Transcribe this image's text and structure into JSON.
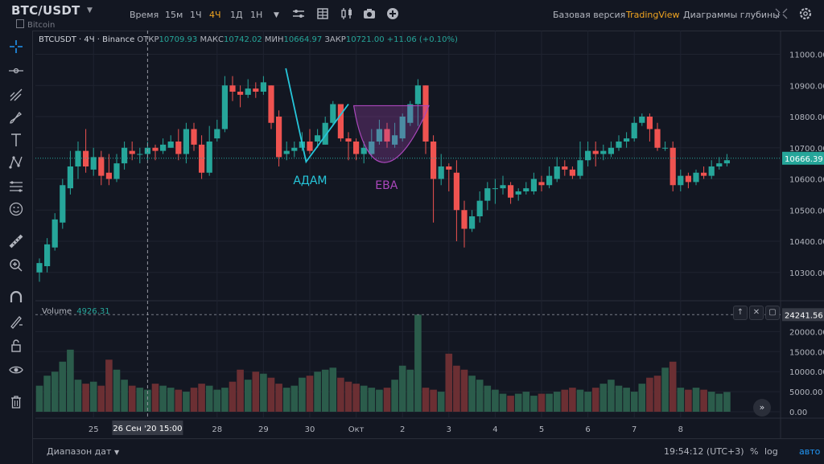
{
  "header": {
    "symbol": "BTC/USDT",
    "subtitle": "Bitcoin",
    "timeframes": [
      "Время",
      "15м",
      "1Ч",
      "4Ч",
      "1Д",
      "1Н"
    ],
    "active_timeframe": "4Ч",
    "links": [
      "Базовая версия",
      "TradingView",
      "Диаграммы глубины"
    ],
    "icons": [
      "chevron-down-icon",
      "indicators-icon",
      "grid-icon",
      "chart-type-icon",
      "camera-icon",
      "add-icon",
      "fullscreen-icon",
      "settings-icon"
    ]
  },
  "legend": {
    "name": "BTCUSDT · 4Ч · Binance",
    "open_label": "ОТКР",
    "open": "10709.93",
    "high_label": "МАКС",
    "high": "10742.02",
    "low_label": "МИН",
    "low": "10664.97",
    "close_label": "ЗАКР",
    "close": "10721.00",
    "change": "+11.06 (+0.10%)"
  },
  "volume_legend": {
    "label": "Volume",
    "value": "4926.31"
  },
  "bottom": {
    "range_label": "Диапазон дат",
    "clock": "19:54:12 (UTC+3)",
    "percent": "%",
    "log": "log",
    "auto": "авто"
  },
  "colors": {
    "up": "#26a69a",
    "down": "#ef5350",
    "bg": "#131722",
    "grid": "#1f2330",
    "text": "#b2b5be",
    "adam": "#26c6da",
    "eva": "#ab47bc"
  },
  "chart_data": {
    "type": "candlestick",
    "price_ticks": [
      11000,
      10900,
      10800,
      10700,
      10600,
      10500,
      10400,
      10300
    ],
    "price_range": [
      10240,
      11040
    ],
    "current_price": "10666.39",
    "volume_ticks": [
      20000,
      15000,
      10000,
      5000,
      0
    ],
    "volume_tick_labels": [
      "20000.00",
      "15000.00",
      "10000.00",
      "5000.00",
      "0.00"
    ],
    "volume_range": [
      0,
      24500
    ],
    "volume_marker": "24241.56",
    "x_labels": [
      {
        "i": 7,
        "t": "25"
      },
      {
        "i": 23,
        "t": "28"
      },
      {
        "i": 29,
        "t": "29"
      },
      {
        "i": 35,
        "t": "30"
      },
      {
        "i": 41,
        "t": "Окт"
      },
      {
        "i": 47,
        "t": "2"
      },
      {
        "i": 53,
        "t": "3"
      },
      {
        "i": 59,
        "t": "4"
      },
      {
        "i": 65,
        "t": "5"
      },
      {
        "i": 71,
        "t": "6"
      },
      {
        "i": 77,
        "t": "7"
      },
      {
        "i": 83,
        "t": "8"
      }
    ],
    "crosshair_index": 14,
    "crosshair_label": "26 Сен '20   15:00",
    "candles": [
      [
        10300,
        10330,
        10270,
        10345
      ],
      [
        10320,
        10390,
        10300,
        10410
      ],
      [
        10380,
        10470,
        10370,
        10490
      ],
      [
        10460,
        10580,
        10440,
        10600
      ],
      [
        10570,
        10640,
        10550,
        10690
      ],
      [
        10640,
        10690,
        10600,
        10720
      ],
      [
        10690,
        10640,
        10620,
        10760
      ],
      [
        10630,
        10670,
        10610,
        10700
      ],
      [
        10670,
        10610,
        10580,
        10690
      ],
      [
        10620,
        10600,
        10580,
        10680
      ],
      [
        10600,
        10650,
        10590,
        10680
      ],
      [
        10650,
        10700,
        10630,
        10720
      ],
      [
        10690,
        10680,
        10660,
        10720
      ],
      [
        10680,
        10680,
        10650,
        10700
      ],
      [
        10680,
        10700,
        10660,
        10720
      ],
      [
        10700,
        10690,
        10660,
        10710
      ],
      [
        10690,
        10710,
        10680,
        10730
      ],
      [
        10700,
        10720,
        10700,
        10740
      ],
      [
        10720,
        10680,
        10660,
        10760
      ],
      [
        10680,
        10760,
        10650,
        10780
      ],
      [
        10760,
        10710,
        10690,
        10780
      ],
      [
        10710,
        10620,
        10600,
        10740
      ],
      [
        10620,
        10720,
        10610,
        10770
      ],
      [
        10730,
        10760,
        10720,
        10790
      ],
      [
        10760,
        10900,
        10750,
        10930
      ],
      [
        10900,
        10880,
        10850,
        10930
      ],
      [
        10880,
        10870,
        10830,
        10900
      ],
      [
        10870,
        10890,
        10860,
        10920
      ],
      [
        10890,
        10880,
        10860,
        10910
      ],
      [
        10880,
        10910,
        10870,
        10930
      ],
      [
        10900,
        10780,
        10760,
        10900
      ],
      [
        10800,
        10670,
        10640,
        10820
      ],
      [
        10680,
        10690,
        10660,
        10720
      ],
      [
        10690,
        10700,
        10670,
        10720
      ],
      [
        10700,
        10720,
        10690,
        10750
      ],
      [
        10720,
        10690,
        10680,
        10760
      ],
      [
        10720,
        10740,
        10700,
        10760
      ],
      [
        10710,
        10780,
        10710,
        10800
      ],
      [
        10780,
        10840,
        10770,
        10850
      ],
      [
        10840,
        10730,
        10720,
        10840
      ],
      [
        10730,
        10720,
        10660,
        10750
      ],
      [
        10720,
        10680,
        10660,
        10730
      ],
      [
        10680,
        10700,
        10650,
        10720
      ],
      [
        10680,
        10720,
        10670,
        10760
      ],
      [
        10720,
        10760,
        10710,
        10790
      ],
      [
        10760,
        10720,
        10700,
        10780
      ],
      [
        10710,
        10740,
        10700,
        10780
      ],
      [
        10730,
        10800,
        10720,
        10810
      ],
      [
        10780,
        10840,
        10770,
        10850
      ],
      [
        10840,
        10900,
        10770,
        10920
      ],
      [
        10900,
        10720,
        10680,
        10900
      ],
      [
        10720,
        10600,
        10460,
        10740
      ],
      [
        10600,
        10640,
        10580,
        10680
      ],
      [
        10640,
        10630,
        10560,
        10650
      ],
      [
        10620,
        10500,
        10400,
        10660
      ],
      [
        10500,
        10440,
        10380,
        10530
      ],
      [
        10440,
        10480,
        10430,
        10500
      ],
      [
        10480,
        10530,
        10460,
        10560
      ],
      [
        10530,
        10570,
        10500,
        10590
      ],
      [
        10570,
        10570,
        10520,
        10600
      ],
      [
        10570,
        10580,
        10550,
        10610
      ],
      [
        10580,
        10540,
        10520,
        10590
      ],
      [
        10550,
        10560,
        10530,
        10570
      ],
      [
        10560,
        10570,
        10550,
        10590
      ],
      [
        10560,
        10600,
        10550,
        10620
      ],
      [
        10590,
        10580,
        10560,
        10610
      ],
      [
        10580,
        10610,
        10570,
        10640
      ],
      [
        10600,
        10640,
        10590,
        10670
      ],
      [
        10640,
        10630,
        10610,
        10660
      ],
      [
        10630,
        10610,
        10600,
        10640
      ],
      [
        10610,
        10660,
        10600,
        10720
      ],
      [
        10660,
        10690,
        10640,
        10720
      ],
      [
        10690,
        10680,
        10640,
        10720
      ],
      [
        10680,
        10690,
        10660,
        10710
      ],
      [
        10680,
        10700,
        10670,
        10720
      ],
      [
        10700,
        10720,
        10690,
        10740
      ],
      [
        10720,
        10730,
        10700,
        10750
      ],
      [
        10730,
        10780,
        10720,
        10800
      ],
      [
        10780,
        10800,
        10770,
        10810
      ],
      [
        10800,
        10760,
        10720,
        10810
      ],
      [
        10760,
        10700,
        10690,
        10780
      ],
      [
        10700,
        10700,
        10690,
        10720
      ],
      [
        10700,
        10580,
        10560,
        10720
      ],
      [
        10580,
        10610,
        10560,
        10630
      ],
      [
        10610,
        10590,
        10570,
        10620
      ],
      [
        10590,
        10620,
        10580,
        10630
      ],
      [
        10620,
        10610,
        10600,
        10640
      ],
      [
        10610,
        10640,
        10600,
        10660
      ],
      [
        10640,
        10650,
        10630,
        10670
      ],
      [
        10650,
        10660,
        10640,
        10680
      ]
    ],
    "volumes": [
      6500,
      9000,
      10000,
      12500,
      15500,
      8000,
      7000,
      7500,
      6500,
      13000,
      10500,
      8000,
      6500,
      6000,
      5500,
      7000,
      6500,
      6000,
      5500,
      5000,
      6000,
      7000,
      6500,
      5500,
      6000,
      7500,
      10500,
      8000,
      10000,
      9500,
      8500,
      7000,
      6000,
      6500,
      8500,
      9000,
      10000,
      10500,
      11000,
      8500,
      7500,
      7000,
      6500,
      6000,
      5500,
      6000,
      8000,
      11500,
      10500,
      24241,
      6000,
      5500,
      5000,
      14500,
      11500,
      10500,
      9000,
      8000,
      6500,
      5500,
      4500,
      4000,
      4500,
      5000,
      4000,
      4500,
      4500,
      5000,
      5500,
      6000,
      5500,
      5000,
      6000,
      7000,
      8000,
      6500,
      6000,
      5000,
      7000,
      8500,
      9000,
      11000,
      12500,
      6000,
      5500,
      6000,
      5500,
      5000,
      4500,
      4926
    ],
    "annotations": [
      {
        "label": "АДАМ",
        "color": "#26c6da"
      },
      {
        "label": "ЕВА",
        "color": "#ab47bc"
      }
    ]
  }
}
